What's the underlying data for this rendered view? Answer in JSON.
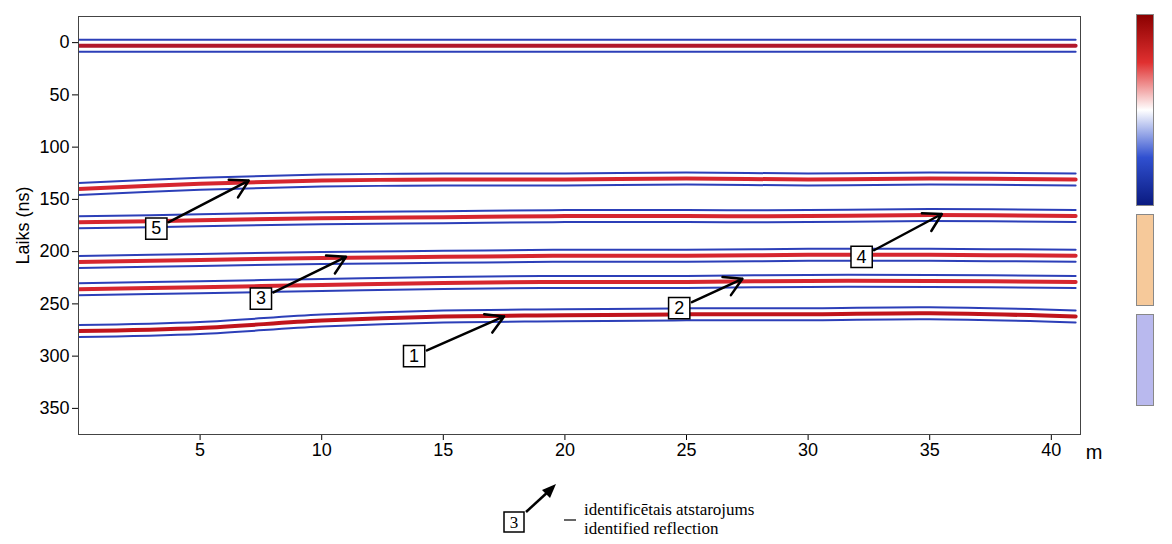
{
  "chart_data": {
    "type": "radargram",
    "x_label": "m",
    "y_label": "Laiks (ns)",
    "xlim": [
      0,
      41.2
    ],
    "xticks": [
      5,
      10,
      15,
      20,
      25,
      30,
      35,
      40
    ],
    "ylim": [
      -25,
      375
    ],
    "yticks": [
      0,
      50,
      100,
      150,
      200,
      250,
      300,
      350
    ],
    "x": [
      0,
      5,
      10,
      15,
      20,
      25,
      30,
      35,
      41
    ],
    "series": [
      {
        "color": "#b2182b",
        "values": [
          3,
          3,
          3,
          3,
          3,
          3,
          3,
          3,
          3
        ]
      },
      {
        "color": "#d6262f",
        "values": [
          140,
          135,
          132,
          131,
          131,
          130,
          131,
          130,
          131
        ]
      },
      {
        "color": "#d6262f",
        "values": [
          172,
          170,
          168,
          167,
          166,
          166,
          166,
          165,
          166
        ]
      },
      {
        "color": "#d6262f",
        "values": [
          210,
          208,
          206,
          205,
          204,
          204,
          203,
          203,
          204
        ]
      },
      {
        "color": "#d6262f",
        "values": [
          236,
          234,
          232,
          230,
          229,
          229,
          228,
          228,
          229
        ]
      },
      {
        "color": "#c0141c",
        "values": [
          276,
          273,
          266,
          262,
          261,
          260,
          260,
          259,
          262
        ]
      }
    ],
    "annotations": [
      {
        "label": "1",
        "x": 17.5,
        "y": 262,
        "label_x": 13.8,
        "label_y": 300
      },
      {
        "label": "2",
        "x": 27.3,
        "y": 226,
        "label_x": 24.7,
        "label_y": 254
      },
      {
        "label": "3",
        "x": 11,
        "y": 205,
        "label_x": 7.5,
        "label_y": 245
      },
      {
        "label": "4",
        "x": 35.5,
        "y": 164,
        "label_x": 32.2,
        "label_y": 205
      },
      {
        "label": "5",
        "x": 7,
        "y": 132,
        "label_x": 3.2,
        "label_y": 178
      }
    ],
    "legend_key": {
      "label": "3",
      "text": [
        "identificētais atstarojums",
        "identified reflection"
      ]
    }
  }
}
